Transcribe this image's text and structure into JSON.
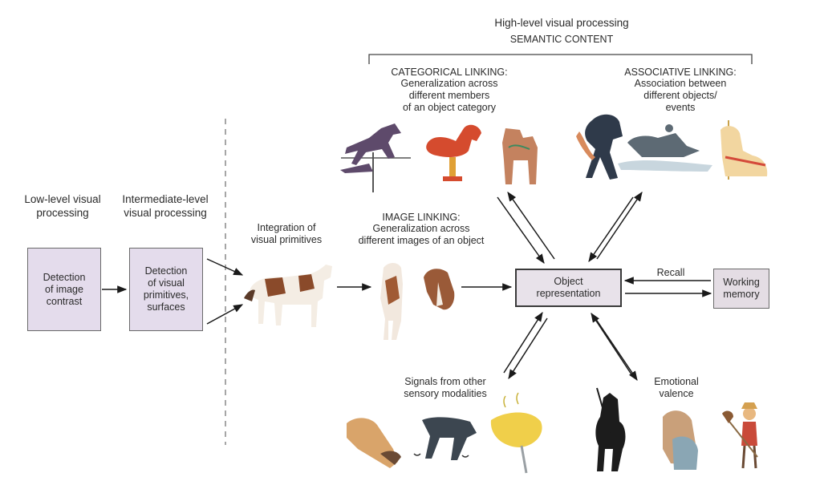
{
  "header": {
    "title": "High-level visual processing",
    "subtitle": "SEMANTIC CONTENT"
  },
  "left": {
    "low_level": "Low-level visual\nprocessing",
    "intermediate": "Intermediate-level\nvisual processing",
    "box_detection_contrast": "Detection\nof image\ncontrast",
    "box_detection_primitives": "Detection\nof visual\nprimitives,\nsurfaces"
  },
  "integration": "Integration of\nvisual primitives",
  "image_linking": {
    "title": "IMAGE LINKING:",
    "desc": "Generalization across\ndifferent images of an object"
  },
  "categorical": {
    "title": "CATEGORICAL  LINKING:",
    "desc": "Generalization across\ndifferent members\nof an object category"
  },
  "associative": {
    "title": "ASSOCIATIVE LINKING:",
    "desc": "Association between\ndifferent objects/\nevents"
  },
  "object_representation": "Object\nrepresentation",
  "working_memory": "Working\nmemory",
  "recall": "Recall",
  "signals": "Signals from other\nsensory modalities",
  "emotional": "Emotional\nvalence",
  "icons": [
    "horse-weathervane-icon",
    "spring-rocking-horse-icon",
    "dala-horse-icon",
    "rearing-horse-rider-icon",
    "swimming-horse-icon",
    "carousel-horse-icon",
    "pinto-horse-icon",
    "horse-front-icon",
    "horse-head-icon",
    "horse-nuzzle-icon",
    "galloping-hooves-icon",
    "hay-fork-icon",
    "knight-silhouette-icon",
    "girl-hugging-horse-icon",
    "child-hobby-horse-icon"
  ]
}
